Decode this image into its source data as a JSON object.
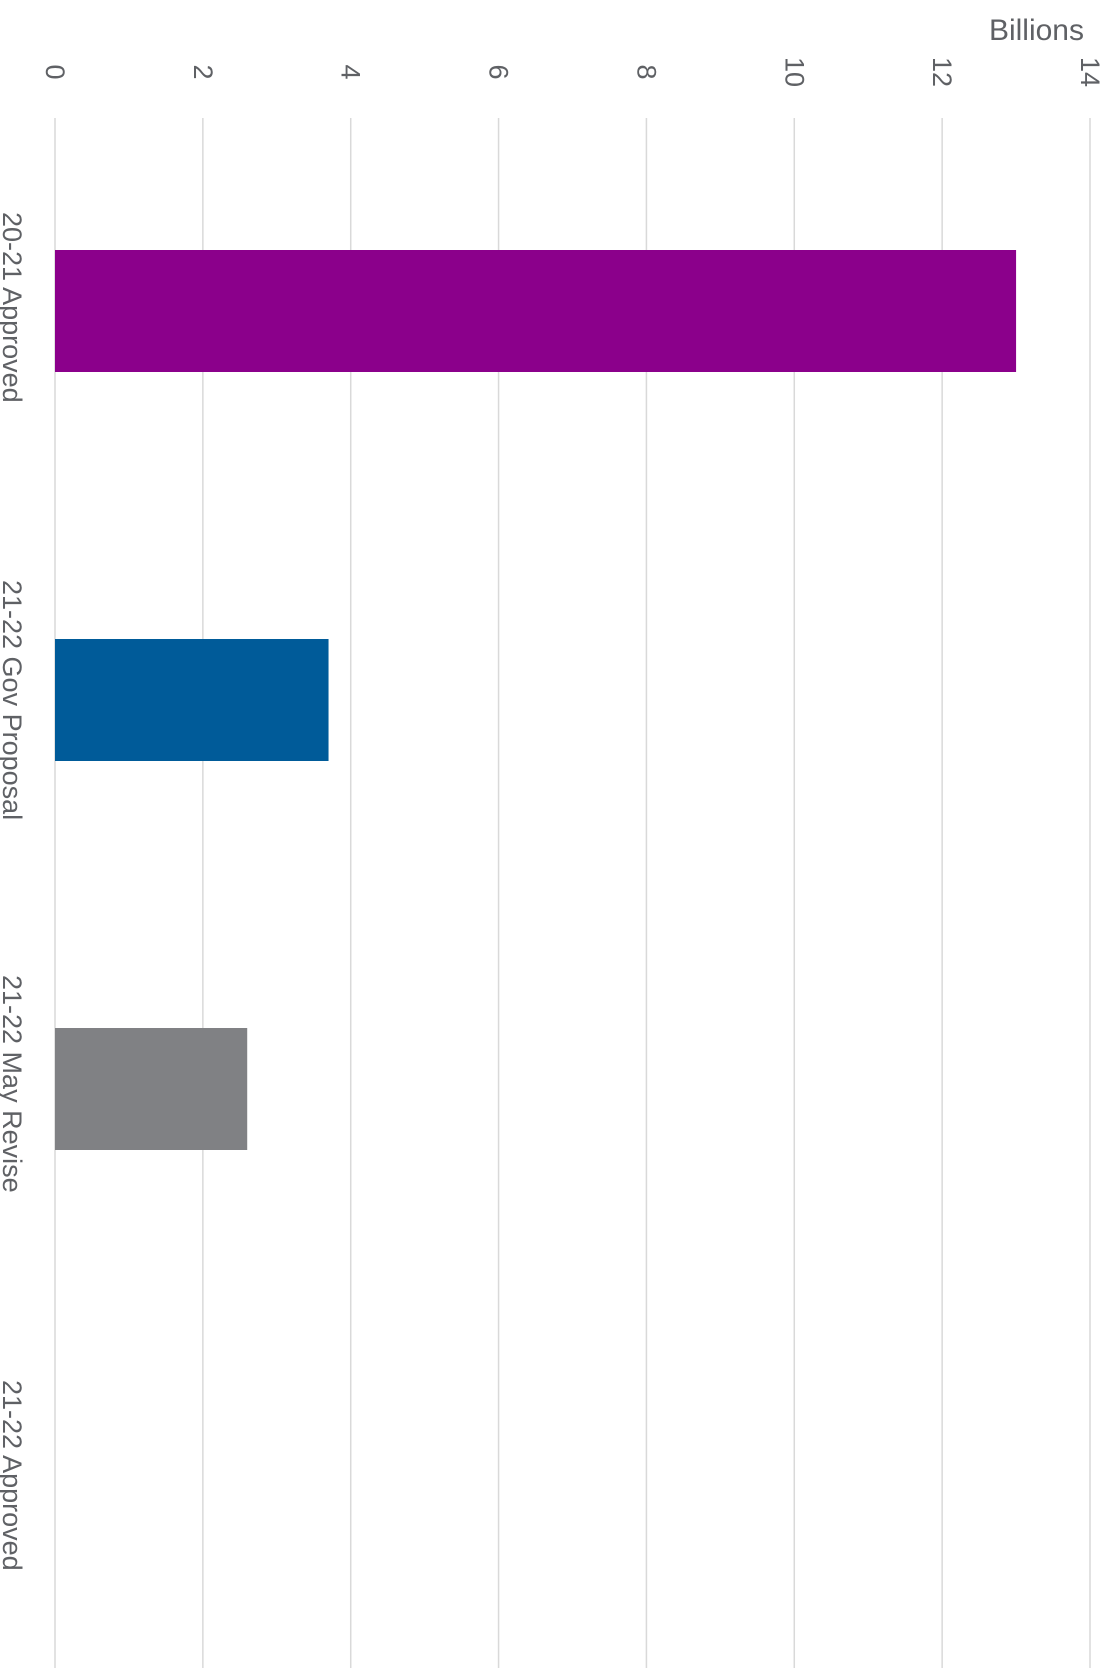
{
  "chart_data": {
    "type": "bar",
    "orientation": "horizontal",
    "rotated": true,
    "categories": [
      "20-21 Approved",
      "21-22 Gov Proposal",
      "21-22 May Revise",
      "21-22 Approved"
    ],
    "values": [
      13.0,
      3.7,
      2.6,
      0
    ],
    "colors": [
      "#8b008b",
      "#005b99",
      "#808184",
      "#ffffff"
    ],
    "value_unit_label": "Billions",
    "ticks": [
      0,
      2,
      4,
      6,
      8,
      10,
      12,
      14
    ],
    "xlim": [
      0,
      14
    ],
    "grid": true,
    "legend": "none",
    "title": "",
    "xlabel": "",
    "ylabel": ""
  }
}
